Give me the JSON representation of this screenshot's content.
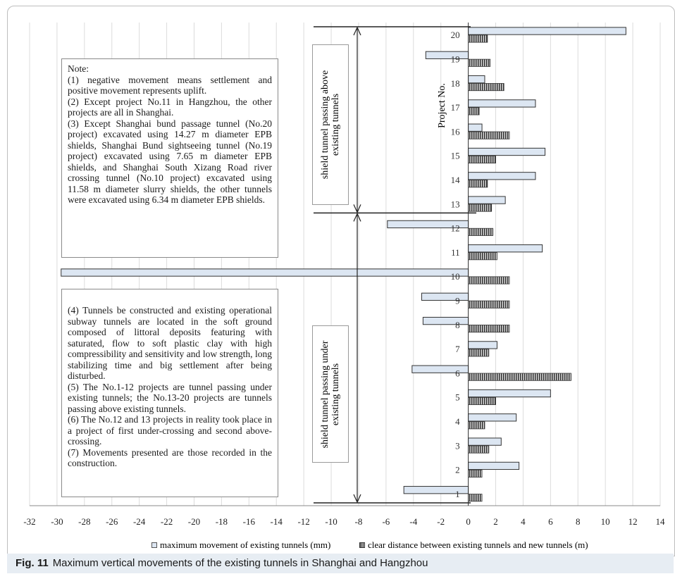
{
  "chart_data": {
    "type": "bar",
    "orientation": "horizontal",
    "ylabel": "Project No.",
    "xlim": [
      -32,
      14
    ],
    "x_ticks": [
      "-32",
      "-30",
      "-28",
      "-26",
      "-24",
      "-22",
      "-20",
      "-18",
      "-16",
      "-14",
      "-12",
      "-10",
      "-8",
      "-6",
      "-4",
      "-2",
      "0",
      "2",
      "4",
      "6",
      "8",
      "10",
      "12",
      "14"
    ],
    "categories": [
      "1",
      "2",
      "3",
      "4",
      "5",
      "6",
      "7",
      "8",
      "9",
      "10",
      "11",
      "12",
      "13",
      "14",
      "15",
      "16",
      "17",
      "18",
      "19",
      "20"
    ],
    "series": [
      {
        "name": "maximum movement of existing tunnels (mm)",
        "color": "#dce6f2",
        "values": [
          -4.7,
          3.7,
          2.4,
          3.5,
          6.0,
          -4.1,
          2.1,
          -3.3,
          -3.4,
          -29.7,
          5.4,
          -5.9,
          2.7,
          4.9,
          5.6,
          1.0,
          4.9,
          1.2,
          -3.1,
          11.5
        ]
      },
      {
        "name": "clear distance between existing tunnels and new tunnels (m)",
        "color": "#6e6e6e",
        "values": [
          1.0,
          1.0,
          1.5,
          1.2,
          2.0,
          7.5,
          1.5,
          3.0,
          3.0,
          3.0,
          2.1,
          1.8,
          1.7,
          1.4,
          2.0,
          3.0,
          0.8,
          2.6,
          1.6,
          1.4
        ]
      }
    ],
    "grid": "vertical",
    "legend_position": "bottom",
    "annotations": {
      "above_label": "shield tunnel passing above existing tunnels",
      "under_label": "shield tunnel passing under existing tunnels",
      "note1": [
        "Note:",
        "(1) negative movement means settlement and positive movement represents uplift.",
        "(2) Except project No.11 in Hangzhou, the other projects are all in Shanghai.",
        "(3) Except Shanghai bund passage tunnel (No.20 project) excavated using 14.27 m diameter EPB shields, Shanghai Bund sightseeing tunnel (No.19 project) excavated using 7.65 m diameter EPB shields, and Shanghai South Xizang Road river crossing tunnel (No.10 project) excavated using 11.58 m diameter slurry shields, the other tunnels were excavated using 6.34 m diameter EPB shields."
      ],
      "note2": [
        "(4) Tunnels be constructed and existing operational subway tunnels are located in the soft ground composed of littoral deposits featuring with saturated, flow to soft plastic clay with high compressibility and sensitivity and low strength, long stabilizing time and big settlement after being disturbed.",
        "(5) The No.1-12 projects are tunnel passing under existing tunnels; the No.13-20 projects are tunnels passing above existing tunnels.",
        "(6) The No.12 and 13 projects in reality took place in a project of first under-crossing and second above-crossing.",
        "(7) Movements presented are those recorded in the construction."
      ]
    }
  },
  "caption": {
    "label": "Fig. 11",
    "text": "Maximum vertical movements of the existing tunnels in Shanghai and Hangzhou"
  }
}
